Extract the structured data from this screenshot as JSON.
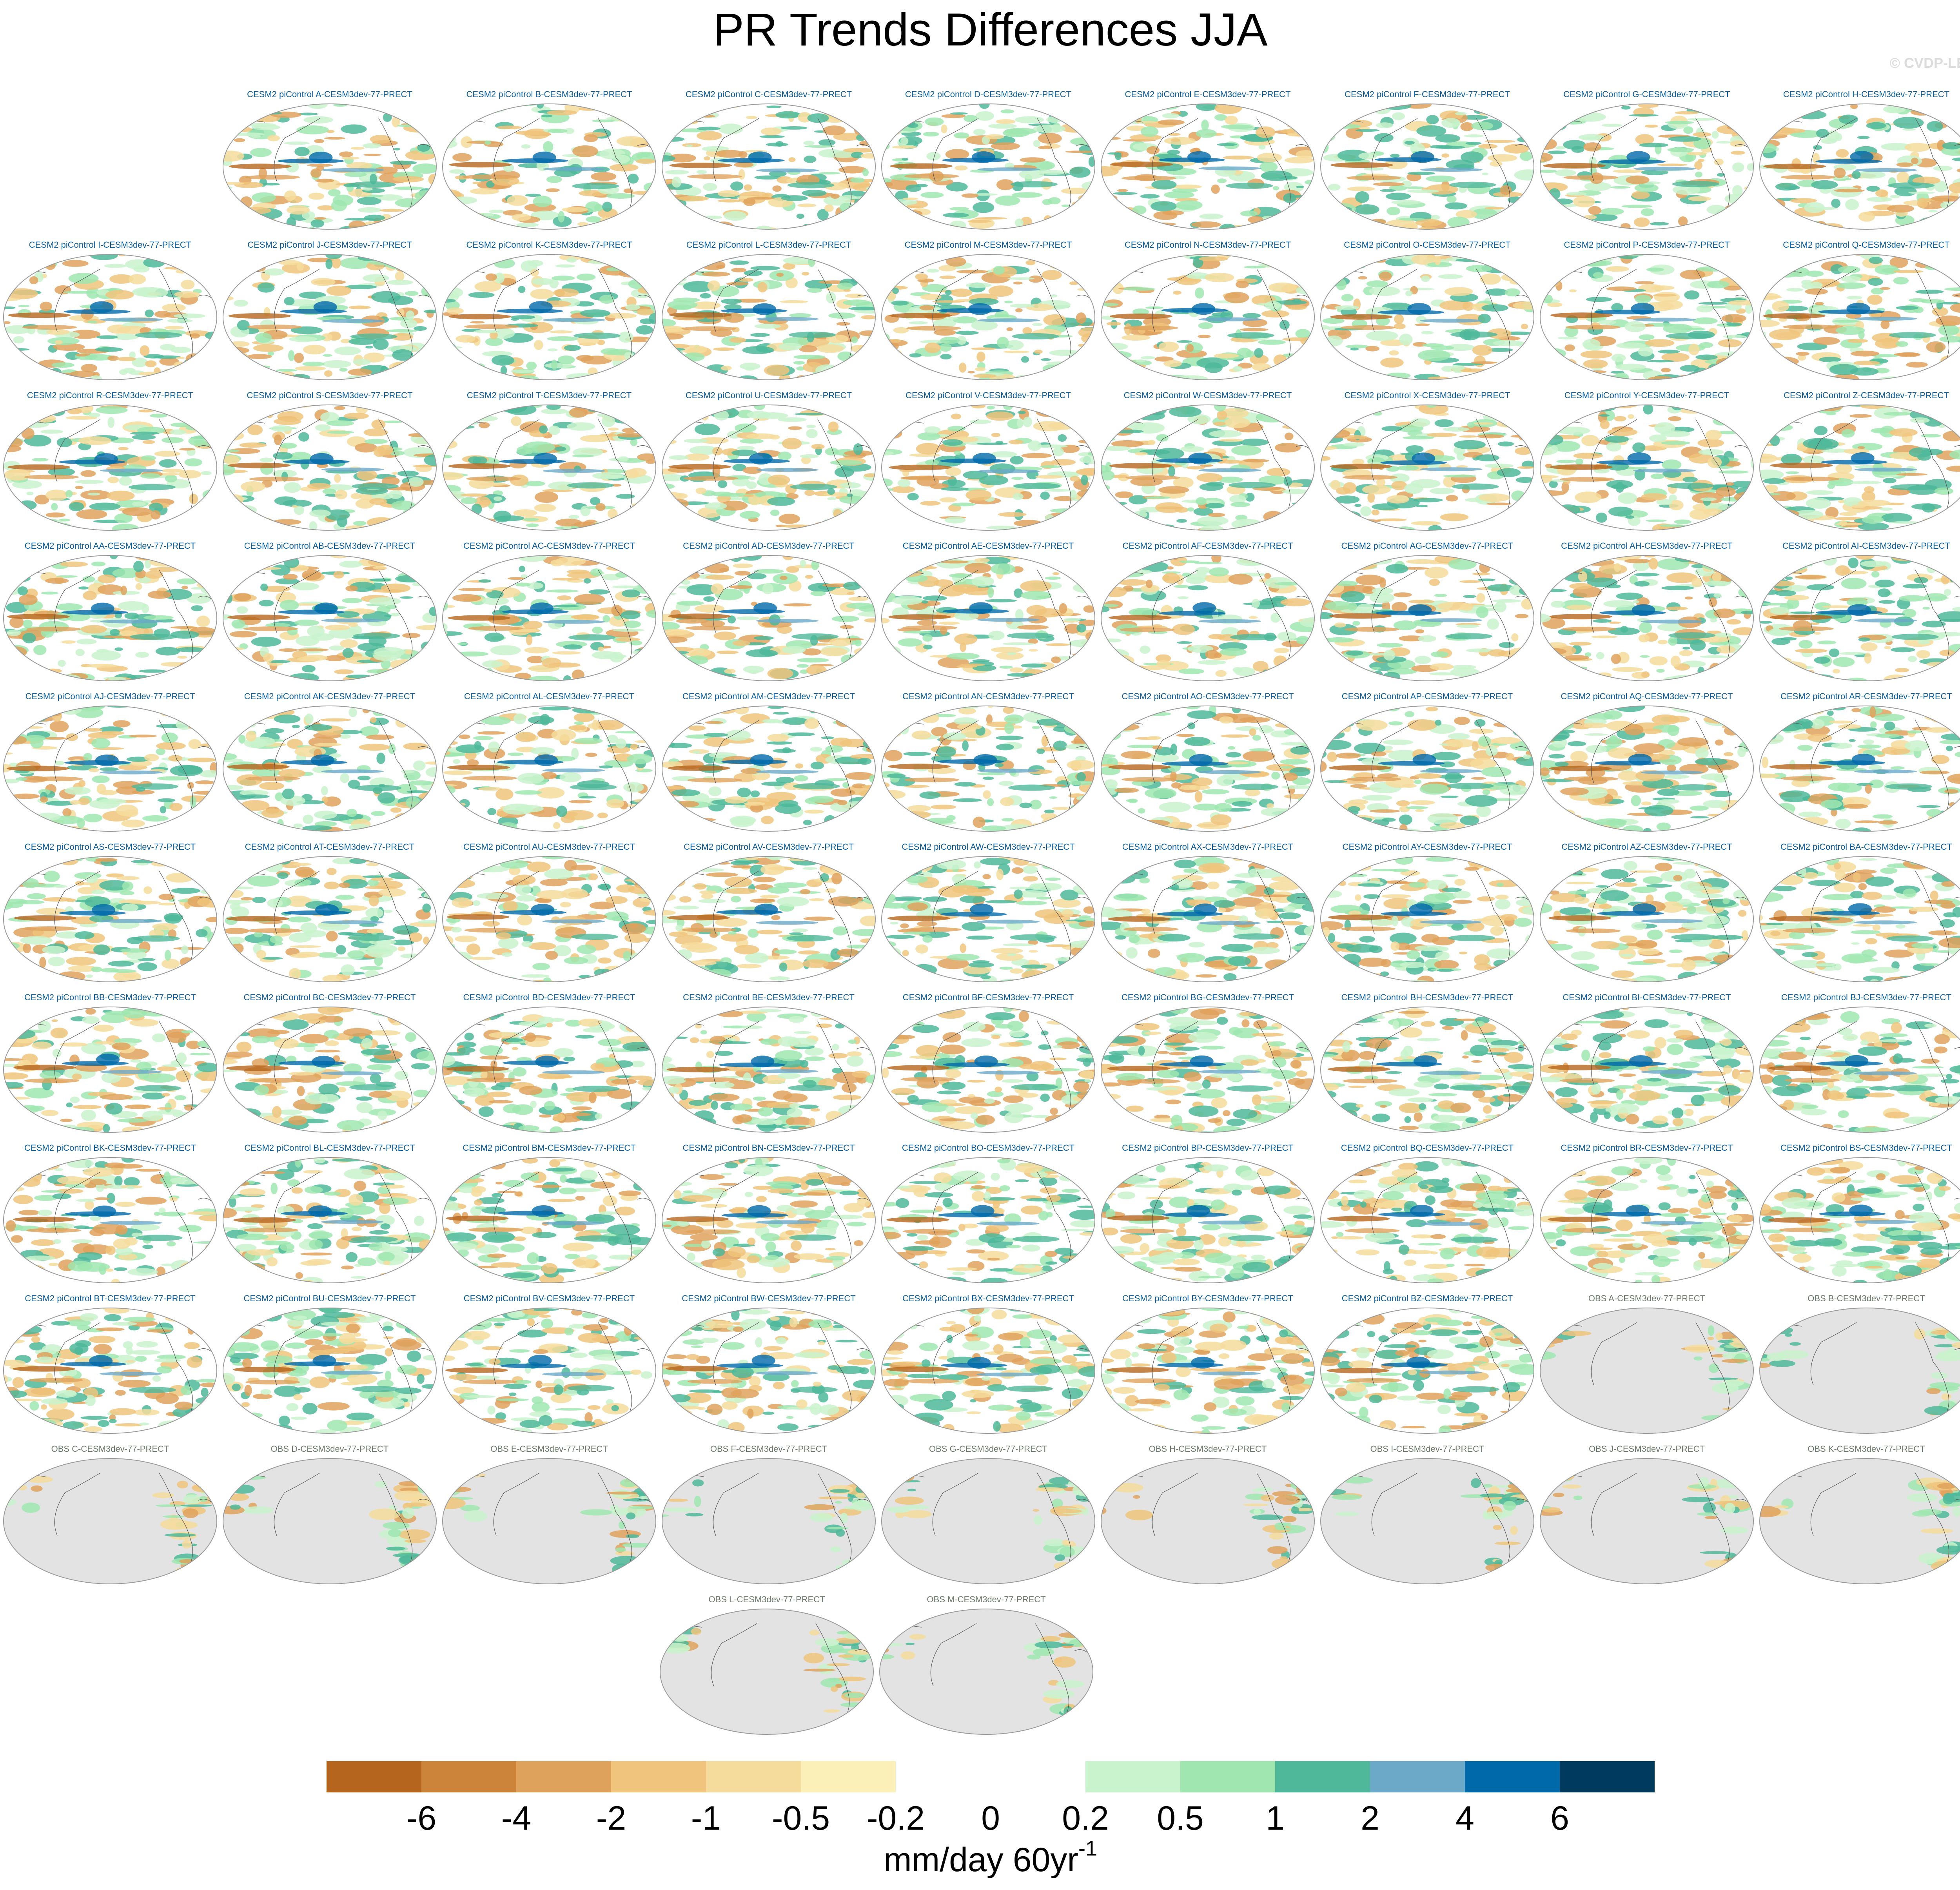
{
  "figure": {
    "title": "PR Trends Differences JJA",
    "watermark": "© CVDP-LE"
  },
  "colors": {
    "model_title": "#0b5d99",
    "obs_title": "#6b7a6b",
    "land_mask_obs": "#e3e3e3",
    "coastline": "#555555"
  },
  "colorbar": {
    "colors": [
      "#b5651d",
      "#cc843a",
      "#dfa25d",
      "#f0c47c",
      "#f6dc9c",
      "#fcf0b9",
      "#ffffff",
      "#ffffff",
      "#c9f3cc",
      "#9fe6b0",
      "#4fb89a",
      "#6ca9c9",
      "#0069aa",
      "#003a5e"
    ],
    "labels": [
      "-6",
      "-4",
      "-2",
      "-1",
      "-0.5",
      "-0.2",
      "0",
      "0.2",
      "0.5",
      "1",
      "2",
      "4",
      "6"
    ],
    "units_base": "mm/day 60yr",
    "units_exponent": "-1"
  },
  "panels": [
    {
      "title": "CESM2 piControl A-CESM3dev-77-PRECT",
      "kind": "model"
    },
    {
      "title": "CESM2 piControl B-CESM3dev-77-PRECT",
      "kind": "model"
    },
    {
      "title": "CESM2 piControl C-CESM3dev-77-PRECT",
      "kind": "model"
    },
    {
      "title": "CESM2 piControl D-CESM3dev-77-PRECT",
      "kind": "model"
    },
    {
      "title": "CESM2 piControl E-CESM3dev-77-PRECT",
      "kind": "model"
    },
    {
      "title": "CESM2 piControl F-CESM3dev-77-PRECT",
      "kind": "model"
    },
    {
      "title": "CESM2 piControl G-CESM3dev-77-PRECT",
      "kind": "model"
    },
    {
      "title": "CESM2 piControl H-CESM3dev-77-PRECT",
      "kind": "model"
    },
    {
      "title": "CESM2 piControl I-CESM3dev-77-PRECT",
      "kind": "model"
    },
    {
      "title": "CESM2 piControl J-CESM3dev-77-PRECT",
      "kind": "model"
    },
    {
      "title": "CESM2 piControl K-CESM3dev-77-PRECT",
      "kind": "model"
    },
    {
      "title": "CESM2 piControl L-CESM3dev-77-PRECT",
      "kind": "model"
    },
    {
      "title": "CESM2 piControl M-CESM3dev-77-PRECT",
      "kind": "model"
    },
    {
      "title": "CESM2 piControl N-CESM3dev-77-PRECT",
      "kind": "model"
    },
    {
      "title": "CESM2 piControl O-CESM3dev-77-PRECT",
      "kind": "model"
    },
    {
      "title": "CESM2 piControl P-CESM3dev-77-PRECT",
      "kind": "model"
    },
    {
      "title": "CESM2 piControl Q-CESM3dev-77-PRECT",
      "kind": "model"
    },
    {
      "title": "CESM2 piControl R-CESM3dev-77-PRECT",
      "kind": "model"
    },
    {
      "title": "CESM2 piControl S-CESM3dev-77-PRECT",
      "kind": "model"
    },
    {
      "title": "CESM2 piControl T-CESM3dev-77-PRECT",
      "kind": "model"
    },
    {
      "title": "CESM2 piControl U-CESM3dev-77-PRECT",
      "kind": "model"
    },
    {
      "title": "CESM2 piControl V-CESM3dev-77-PRECT",
      "kind": "model"
    },
    {
      "title": "CESM2 piControl W-CESM3dev-77-PRECT",
      "kind": "model"
    },
    {
      "title": "CESM2 piControl X-CESM3dev-77-PRECT",
      "kind": "model"
    },
    {
      "title": "CESM2 piControl Y-CESM3dev-77-PRECT",
      "kind": "model"
    },
    {
      "title": "CESM2 piControl Z-CESM3dev-77-PRECT",
      "kind": "model"
    },
    {
      "title": "CESM2 piControl AA-CESM3dev-77-PRECT",
      "kind": "model"
    },
    {
      "title": "CESM2 piControl AB-CESM3dev-77-PRECT",
      "kind": "model"
    },
    {
      "title": "CESM2 piControl AC-CESM3dev-77-PRECT",
      "kind": "model"
    },
    {
      "title": "CESM2 piControl AD-CESM3dev-77-PRECT",
      "kind": "model"
    },
    {
      "title": "CESM2 piControl AE-CESM3dev-77-PRECT",
      "kind": "model"
    },
    {
      "title": "CESM2 piControl AF-CESM3dev-77-PRECT",
      "kind": "model"
    },
    {
      "title": "CESM2 piControl AG-CESM3dev-77-PRECT",
      "kind": "model"
    },
    {
      "title": "CESM2 piControl AH-CESM3dev-77-PRECT",
      "kind": "model"
    },
    {
      "title": "CESM2 piControl AI-CESM3dev-77-PRECT",
      "kind": "model"
    },
    {
      "title": "CESM2 piControl AJ-CESM3dev-77-PRECT",
      "kind": "model"
    },
    {
      "title": "CESM2 piControl AK-CESM3dev-77-PRECT",
      "kind": "model"
    },
    {
      "title": "CESM2 piControl AL-CESM3dev-77-PRECT",
      "kind": "model"
    },
    {
      "title": "CESM2 piControl AM-CESM3dev-77-PRECT",
      "kind": "model"
    },
    {
      "title": "CESM2 piControl AN-CESM3dev-77-PRECT",
      "kind": "model"
    },
    {
      "title": "CESM2 piControl AO-CESM3dev-77-PRECT",
      "kind": "model"
    },
    {
      "title": "CESM2 piControl AP-CESM3dev-77-PRECT",
      "kind": "model"
    },
    {
      "title": "CESM2 piControl AQ-CESM3dev-77-PRECT",
      "kind": "model"
    },
    {
      "title": "CESM2 piControl AR-CESM3dev-77-PRECT",
      "kind": "model"
    },
    {
      "title": "CESM2 piControl AS-CESM3dev-77-PRECT",
      "kind": "model"
    },
    {
      "title": "CESM2 piControl AT-CESM3dev-77-PRECT",
      "kind": "model"
    },
    {
      "title": "CESM2 piControl AU-CESM3dev-77-PRECT",
      "kind": "model"
    },
    {
      "title": "CESM2 piControl AV-CESM3dev-77-PRECT",
      "kind": "model"
    },
    {
      "title": "CESM2 piControl AW-CESM3dev-77-PRECT",
      "kind": "model"
    },
    {
      "title": "CESM2 piControl AX-CESM3dev-77-PRECT",
      "kind": "model"
    },
    {
      "title": "CESM2 piControl AY-CESM3dev-77-PRECT",
      "kind": "model"
    },
    {
      "title": "CESM2 piControl AZ-CESM3dev-77-PRECT",
      "kind": "model"
    },
    {
      "title": "CESM2 piControl BA-CESM3dev-77-PRECT",
      "kind": "model"
    },
    {
      "title": "CESM2 piControl BB-CESM3dev-77-PRECT",
      "kind": "model"
    },
    {
      "title": "CESM2 piControl BC-CESM3dev-77-PRECT",
      "kind": "model"
    },
    {
      "title": "CESM2 piControl BD-CESM3dev-77-PRECT",
      "kind": "model"
    },
    {
      "title": "CESM2 piControl BE-CESM3dev-77-PRECT",
      "kind": "model"
    },
    {
      "title": "CESM2 piControl BF-CESM3dev-77-PRECT",
      "kind": "model"
    },
    {
      "title": "CESM2 piControl BG-CESM3dev-77-PRECT",
      "kind": "model"
    },
    {
      "title": "CESM2 piControl BH-CESM3dev-77-PRECT",
      "kind": "model"
    },
    {
      "title": "CESM2 piControl BI-CESM3dev-77-PRECT",
      "kind": "model"
    },
    {
      "title": "CESM2 piControl BJ-CESM3dev-77-PRECT",
      "kind": "model"
    },
    {
      "title": "CESM2 piControl BK-CESM3dev-77-PRECT",
      "kind": "model"
    },
    {
      "title": "CESM2 piControl BL-CESM3dev-77-PRECT",
      "kind": "model"
    },
    {
      "title": "CESM2 piControl BM-CESM3dev-77-PRECT",
      "kind": "model"
    },
    {
      "title": "CESM2 piControl BN-CESM3dev-77-PRECT",
      "kind": "model"
    },
    {
      "title": "CESM2 piControl BO-CESM3dev-77-PRECT",
      "kind": "model"
    },
    {
      "title": "CESM2 piControl BP-CESM3dev-77-PRECT",
      "kind": "model"
    },
    {
      "title": "CESM2 piControl BQ-CESM3dev-77-PRECT",
      "kind": "model"
    },
    {
      "title": "CESM2 piControl BR-CESM3dev-77-PRECT",
      "kind": "model"
    },
    {
      "title": "CESM2 piControl BS-CESM3dev-77-PRECT",
      "kind": "model"
    },
    {
      "title": "CESM2 piControl BT-CESM3dev-77-PRECT",
      "kind": "model"
    },
    {
      "title": "CESM2 piControl BU-CESM3dev-77-PRECT",
      "kind": "model"
    },
    {
      "title": "CESM2 piControl BV-CESM3dev-77-PRECT",
      "kind": "model"
    },
    {
      "title": "CESM2 piControl BW-CESM3dev-77-PRECT",
      "kind": "model"
    },
    {
      "title": "CESM2 piControl BX-CESM3dev-77-PRECT",
      "kind": "model"
    },
    {
      "title": "CESM2 piControl BY-CESM3dev-77-PRECT",
      "kind": "model"
    },
    {
      "title": "CESM2 piControl BZ-CESM3dev-77-PRECT",
      "kind": "model"
    },
    {
      "title": "OBS A-CESM3dev-77-PRECT",
      "kind": "obs"
    },
    {
      "title": "OBS B-CESM3dev-77-PRECT",
      "kind": "obs"
    },
    {
      "title": "OBS C-CESM3dev-77-PRECT",
      "kind": "obs"
    },
    {
      "title": "OBS D-CESM3dev-77-PRECT",
      "kind": "obs"
    },
    {
      "title": "OBS E-CESM3dev-77-PRECT",
      "kind": "obs"
    },
    {
      "title": "OBS F-CESM3dev-77-PRECT",
      "kind": "obs"
    },
    {
      "title": "OBS G-CESM3dev-77-PRECT",
      "kind": "obs"
    },
    {
      "title": "OBS H-CESM3dev-77-PRECT",
      "kind": "obs"
    },
    {
      "title": "OBS I-CESM3dev-77-PRECT",
      "kind": "obs"
    },
    {
      "title": "OBS J-CESM3dev-77-PRECT",
      "kind": "obs"
    },
    {
      "title": "OBS K-CESM3dev-77-PRECT",
      "kind": "obs"
    },
    {
      "title": "OBS L-CESM3dev-77-PRECT",
      "kind": "obs"
    },
    {
      "title": "OBS M-CESM3dev-77-PRECT",
      "kind": "obs"
    }
  ]
}
